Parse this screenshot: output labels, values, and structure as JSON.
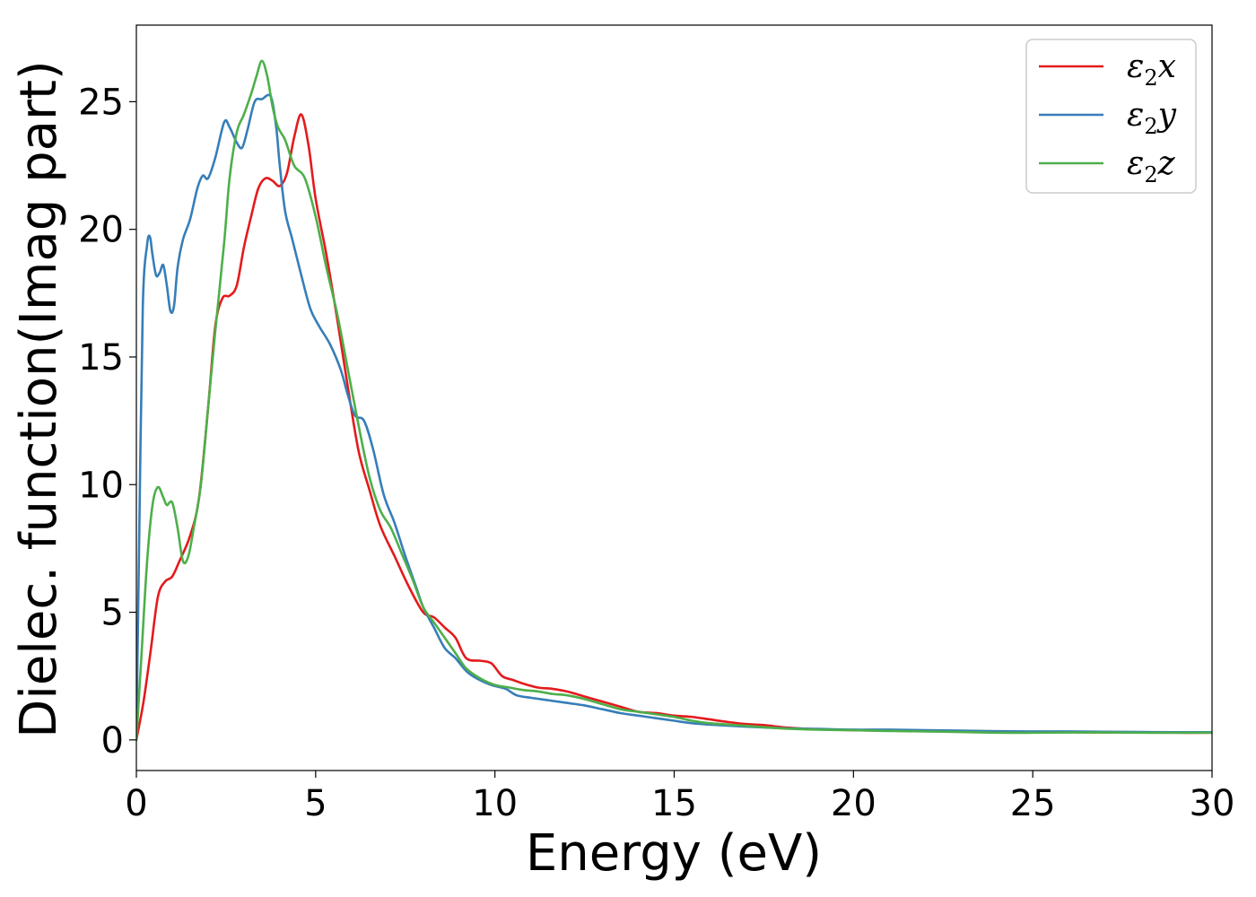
{
  "chart_data": {
    "type": "line",
    "title": "",
    "xlabel": "Energy (eV)",
    "ylabel": "Dielec. function(Imag part)",
    "xlim": [
      0,
      30
    ],
    "ylim": [
      -1.2,
      28
    ],
    "xticks": [
      0,
      5,
      10,
      15,
      20,
      25,
      30
    ],
    "xtick_labels": [
      "0",
      "5",
      "10",
      "15",
      "20",
      "25",
      "30"
    ],
    "yticks": [
      0,
      5,
      10,
      15,
      20,
      25
    ],
    "ytick_labels": [
      "0",
      "5",
      "10",
      "15",
      "20",
      "25"
    ],
    "grid": false,
    "legend_position": "top-right",
    "series": [
      {
        "name": "ε2x",
        "legend_base": "ε",
        "legend_sub": "2",
        "legend_suffix": "x",
        "color": "#e41a1c",
        "points": [
          [
            0,
            0
          ],
          [
            0.2,
            1.5
          ],
          [
            0.4,
            3.5
          ],
          [
            0.6,
            5.6
          ],
          [
            0.8,
            6.2
          ],
          [
            1.0,
            6.4
          ],
          [
            1.2,
            7.0
          ],
          [
            1.5,
            8.0
          ],
          [
            1.75,
            9.5
          ],
          [
            2.0,
            13.0
          ],
          [
            2.2,
            16.2
          ],
          [
            2.4,
            17.3
          ],
          [
            2.6,
            17.4
          ],
          [
            2.8,
            17.8
          ],
          [
            3.0,
            19.3
          ],
          [
            3.2,
            20.5
          ],
          [
            3.4,
            21.6
          ],
          [
            3.6,
            22.0
          ],
          [
            3.8,
            21.9
          ],
          [
            4.0,
            21.7
          ],
          [
            4.2,
            22.2
          ],
          [
            4.4,
            23.6
          ],
          [
            4.6,
            24.5
          ],
          [
            4.8,
            23.3
          ],
          [
            5.0,
            21.2
          ],
          [
            5.3,
            19.0
          ],
          [
            5.6,
            16.5
          ],
          [
            5.9,
            13.8
          ],
          [
            6.2,
            11.3
          ],
          [
            6.5,
            9.8
          ],
          [
            6.8,
            8.4
          ],
          [
            7.2,
            7.2
          ],
          [
            7.6,
            6.0
          ],
          [
            8.0,
            5.0
          ],
          [
            8.3,
            4.8
          ],
          [
            8.6,
            4.4
          ],
          [
            8.9,
            4.0
          ],
          [
            9.2,
            3.2
          ],
          [
            9.6,
            3.1
          ],
          [
            9.9,
            3.0
          ],
          [
            10.2,
            2.5
          ],
          [
            10.5,
            2.35
          ],
          [
            10.8,
            2.2
          ],
          [
            11.2,
            2.05
          ],
          [
            11.6,
            2.0
          ],
          [
            12.0,
            1.9
          ],
          [
            12.5,
            1.7
          ],
          [
            13.0,
            1.5
          ],
          [
            13.5,
            1.3
          ],
          [
            14.0,
            1.1
          ],
          [
            14.5,
            1.05
          ],
          [
            15.0,
            0.95
          ],
          [
            15.5,
            0.9
          ],
          [
            16.0,
            0.8
          ],
          [
            16.5,
            0.7
          ],
          [
            17.0,
            0.62
          ],
          [
            17.5,
            0.58
          ],
          [
            18.0,
            0.5
          ],
          [
            18.5,
            0.45
          ],
          [
            19.0,
            0.42
          ],
          [
            20.0,
            0.38
          ],
          [
            21.0,
            0.36
          ],
          [
            22.0,
            0.34
          ],
          [
            23.0,
            0.32
          ],
          [
            24.0,
            0.31
          ],
          [
            25.0,
            0.3
          ],
          [
            26.0,
            0.3
          ],
          [
            27.0,
            0.29
          ],
          [
            28.0,
            0.29
          ],
          [
            29.0,
            0.28
          ],
          [
            30.0,
            0.28
          ]
        ]
      },
      {
        "name": "ε2y",
        "legend_base": "ε",
        "legend_sub": "2",
        "legend_suffix": "y",
        "color": "#377eb8",
        "points": [
          [
            0,
            0
          ],
          [
            0.08,
            8.0
          ],
          [
            0.18,
            17.0
          ],
          [
            0.3,
            19.4
          ],
          [
            0.38,
            19.7
          ],
          [
            0.45,
            19.0
          ],
          [
            0.55,
            18.2
          ],
          [
            0.65,
            18.3
          ],
          [
            0.75,
            18.6
          ],
          [
            0.85,
            17.8
          ],
          [
            0.95,
            16.8
          ],
          [
            1.05,
            17.0
          ],
          [
            1.15,
            18.5
          ],
          [
            1.3,
            19.6
          ],
          [
            1.5,
            20.4
          ],
          [
            1.7,
            21.6
          ],
          [
            1.85,
            22.1
          ],
          [
            2.0,
            22.0
          ],
          [
            2.2,
            22.8
          ],
          [
            2.45,
            24.2
          ],
          [
            2.6,
            24.0
          ],
          [
            2.8,
            23.4
          ],
          [
            2.95,
            23.2
          ],
          [
            3.1,
            23.9
          ],
          [
            3.3,
            25.0
          ],
          [
            3.5,
            25.1
          ],
          [
            3.75,
            25.2
          ],
          [
            3.9,
            24.0
          ],
          [
            4.0,
            22.5
          ],
          [
            4.15,
            20.7
          ],
          [
            4.35,
            19.6
          ],
          [
            4.6,
            18.2
          ],
          [
            4.85,
            16.9
          ],
          [
            5.1,
            16.2
          ],
          [
            5.4,
            15.5
          ],
          [
            5.7,
            14.5
          ],
          [
            5.9,
            13.5
          ],
          [
            6.1,
            12.7
          ],
          [
            6.35,
            12.5
          ],
          [
            6.6,
            11.4
          ],
          [
            6.9,
            9.6
          ],
          [
            7.2,
            8.5
          ],
          [
            7.5,
            7.2
          ],
          [
            7.8,
            6.0
          ],
          [
            8.0,
            5.2
          ],
          [
            8.3,
            4.4
          ],
          [
            8.6,
            3.6
          ],
          [
            8.9,
            3.2
          ],
          [
            9.2,
            2.7
          ],
          [
            9.5,
            2.4
          ],
          [
            9.9,
            2.15
          ],
          [
            10.3,
            2.0
          ],
          [
            10.6,
            1.75
          ],
          [
            11.0,
            1.65
          ],
          [
            11.5,
            1.55
          ],
          [
            12.0,
            1.45
          ],
          [
            12.5,
            1.35
          ],
          [
            13.0,
            1.2
          ],
          [
            13.5,
            1.05
          ],
          [
            14.0,
            0.95
          ],
          [
            14.5,
            0.85
          ],
          [
            15.0,
            0.75
          ],
          [
            15.5,
            0.65
          ],
          [
            16.0,
            0.6
          ],
          [
            17.0,
            0.52
          ],
          [
            18.0,
            0.46
          ],
          [
            19.0,
            0.43
          ],
          [
            20.0,
            0.4
          ],
          [
            21.0,
            0.4
          ],
          [
            22.0,
            0.38
          ],
          [
            23.0,
            0.36
          ],
          [
            24.0,
            0.34
          ],
          [
            25.0,
            0.33
          ],
          [
            26.0,
            0.33
          ],
          [
            27.0,
            0.32
          ],
          [
            28.0,
            0.31
          ],
          [
            29.0,
            0.3
          ],
          [
            30.0,
            0.3
          ]
        ]
      },
      {
        "name": "ε2z",
        "legend_base": "ε",
        "legend_sub": "2",
        "legend_suffix": "z",
        "color": "#4daf4a",
        "points": [
          [
            0,
            0
          ],
          [
            0.15,
            3.5
          ],
          [
            0.3,
            7.0
          ],
          [
            0.45,
            9.2
          ],
          [
            0.6,
            9.9
          ],
          [
            0.75,
            9.5
          ],
          [
            0.85,
            9.2
          ],
          [
            1.0,
            9.3
          ],
          [
            1.15,
            8.3
          ],
          [
            1.3,
            7.0
          ],
          [
            1.45,
            7.2
          ],
          [
            1.6,
            8.3
          ],
          [
            1.8,
            10.0
          ],
          [
            2.0,
            13.0
          ],
          [
            2.2,
            16.0
          ],
          [
            2.45,
            19.5
          ],
          [
            2.6,
            22.0
          ],
          [
            2.8,
            23.8
          ],
          [
            3.0,
            24.5
          ],
          [
            3.2,
            25.3
          ],
          [
            3.35,
            26.0
          ],
          [
            3.5,
            26.6
          ],
          [
            3.65,
            26.0
          ],
          [
            3.8,
            24.8
          ],
          [
            3.95,
            24.0
          ],
          [
            4.15,
            23.5
          ],
          [
            4.4,
            22.5
          ],
          [
            4.7,
            22.0
          ],
          [
            5.0,
            20.5
          ],
          [
            5.3,
            18.5
          ],
          [
            5.6,
            16.7
          ],
          [
            5.9,
            14.5
          ],
          [
            6.2,
            12.3
          ],
          [
            6.5,
            10.3
          ],
          [
            6.8,
            9.0
          ],
          [
            7.1,
            8.3
          ],
          [
            7.4,
            7.3
          ],
          [
            7.7,
            6.3
          ],
          [
            8.0,
            5.2
          ],
          [
            8.3,
            4.6
          ],
          [
            8.6,
            4.0
          ],
          [
            8.9,
            3.4
          ],
          [
            9.2,
            2.8
          ],
          [
            9.6,
            2.4
          ],
          [
            10.0,
            2.15
          ],
          [
            10.4,
            2.05
          ],
          [
            10.8,
            1.95
          ],
          [
            11.2,
            1.9
          ],
          [
            11.6,
            1.8
          ],
          [
            12.0,
            1.75
          ],
          [
            12.5,
            1.6
          ],
          [
            13.0,
            1.4
          ],
          [
            13.5,
            1.2
          ],
          [
            14.0,
            1.1
          ],
          [
            14.5,
            1.0
          ],
          [
            15.0,
            0.9
          ],
          [
            15.5,
            0.75
          ],
          [
            16.0,
            0.65
          ],
          [
            17.0,
            0.55
          ],
          [
            18.0,
            0.45
          ],
          [
            19.0,
            0.4
          ],
          [
            20.0,
            0.38
          ],
          [
            21.0,
            0.35
          ],
          [
            22.0,
            0.33
          ],
          [
            23.0,
            0.31
          ],
          [
            24.0,
            0.28
          ],
          [
            25.0,
            0.28
          ],
          [
            26.0,
            0.29
          ],
          [
            27.0,
            0.29
          ],
          [
            28.0,
            0.28
          ],
          [
            29.0,
            0.28
          ],
          [
            30.0,
            0.28
          ]
        ]
      }
    ]
  }
}
